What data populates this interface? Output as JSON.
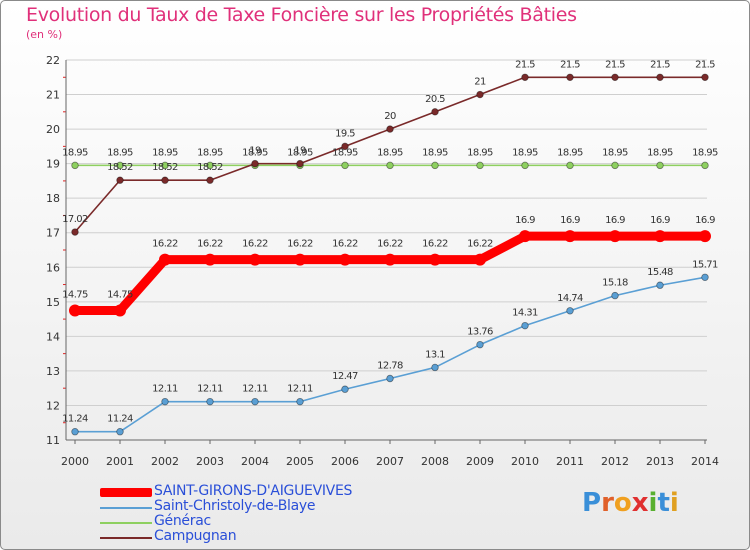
{
  "title": "Evolution du Taux de Taxe Foncière sur les Propriétés Bâties",
  "unit_label": "(en %)",
  "brand": "Proxiti",
  "colors": {
    "title": "#e0307a",
    "legend_text": "#2a4fd8",
    "grid": "#cfcfcf"
  },
  "chart_data": {
    "type": "line",
    "title": "Evolution du Taux de Taxe Foncière sur les Propriétés Bâties",
    "ylabel": "(en %)",
    "xlabel": "",
    "ylim": [
      11,
      22
    ],
    "yticks": [
      11,
      12,
      13,
      14,
      15,
      16,
      17,
      18,
      19,
      20,
      21,
      22
    ],
    "grid": "horizontal",
    "legend_position": "bottom-left",
    "categories": [
      "2000",
      "2001",
      "2002",
      "2003",
      "2004",
      "2005",
      "2006",
      "2007",
      "2008",
      "2009",
      "2010",
      "2011",
      "2012",
      "2013",
      "2014"
    ],
    "series": [
      {
        "name": "SAINT-GIRONS-D'AIGUEVIVES",
        "color": "#ff0000",
        "values": [
          14.75,
          14.75,
          16.22,
          16.22,
          16.22,
          16.22,
          16.22,
          16.22,
          16.22,
          16.22,
          16.9,
          16.9,
          16.9,
          16.9,
          16.9
        ],
        "labels": [
          "14.75",
          "14.75",
          "16.22",
          "16.22",
          "16.22",
          "16.22",
          "16.22",
          "16.22",
          "16.22",
          "16.22",
          "16.9",
          "16.9",
          "16.9",
          "16.9",
          "16.9"
        ]
      },
      {
        "name": "Saint-Christoly-de-Blaye",
        "color": "#5a9fd4",
        "values": [
          11.24,
          11.24,
          12.11,
          12.11,
          12.11,
          12.11,
          12.47,
          12.78,
          13.1,
          13.76,
          14.31,
          14.74,
          15.18,
          15.48,
          15.71
        ],
        "labels": [
          "11.24",
          "11.24",
          "12.11",
          "12.11",
          "12.11",
          "12.11",
          "12.47",
          "12.78",
          "13.1",
          "13.76",
          "14.31",
          "14.74",
          "15.18",
          "15.48",
          "15.71"
        ]
      },
      {
        "name": "Générac",
        "color": "#8ed060",
        "values": [
          18.95,
          18.95,
          18.95,
          18.95,
          18.95,
          18.95,
          18.95,
          18.95,
          18.95,
          18.95,
          18.95,
          18.95,
          18.95,
          18.95,
          18.95
        ],
        "labels": [
          "18.95",
          "18.95",
          "18.95",
          "18.95",
          "18.95",
          "18.95",
          "18.95",
          "18.95",
          "18.95",
          "18.95",
          "18.95",
          "18.95",
          "18.95",
          "18.95",
          "18.95"
        ]
      },
      {
        "name": "Campugnan",
        "color": "#7a2a2a",
        "values": [
          17.02,
          18.52,
          18.52,
          18.52,
          19,
          19,
          19.5,
          20,
          20.5,
          21,
          21.5,
          21.5,
          21.5,
          21.5,
          21.5
        ],
        "labels": [
          "17.02",
          "18.52",
          "18.52",
          "18.52",
          "19",
          "19",
          "19.5",
          "20",
          "20.5",
          "21",
          "21.5",
          "21.5",
          "21.5",
          "21.5",
          "21.5"
        ]
      }
    ]
  }
}
